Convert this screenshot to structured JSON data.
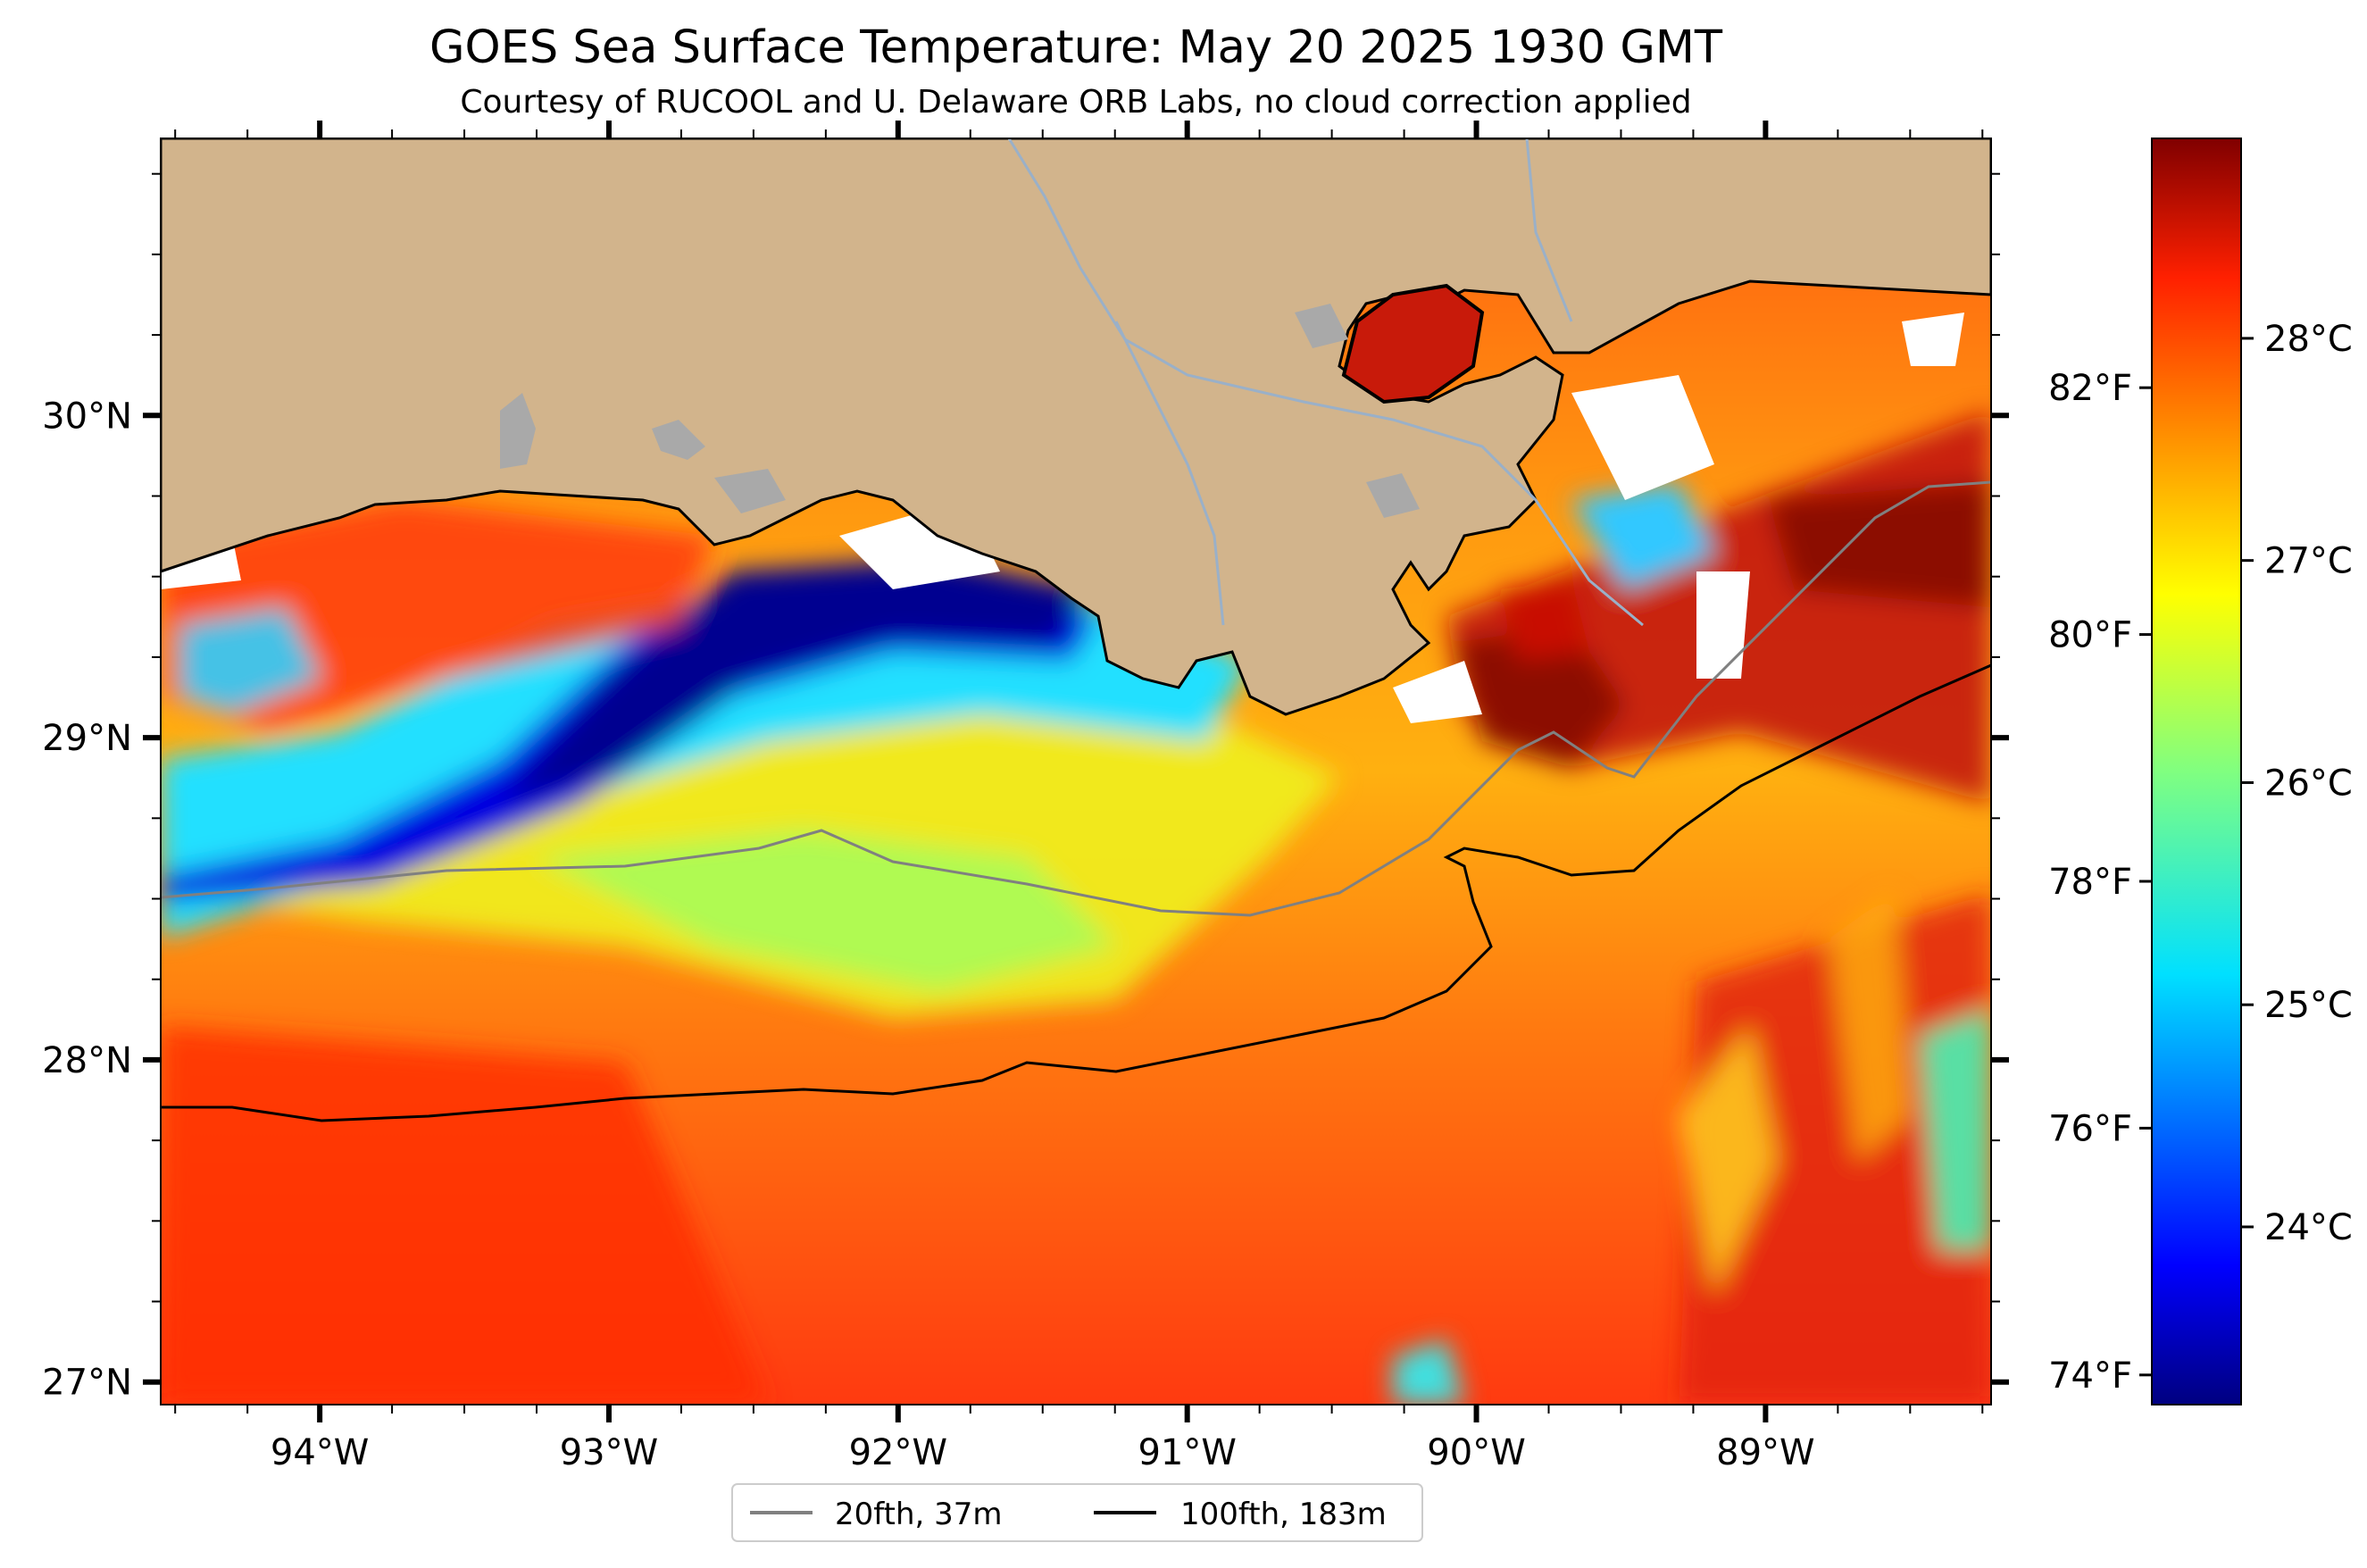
{
  "title": "GOES Sea Surface Temperature: May 20 2025 1930 GMT",
  "subtitle": "Courtesy of RUCOOL and U. Delaware ORB Labs, no cloud correction applied",
  "map": {
    "type": "map",
    "extent": {
      "lon_min": -94.55,
      "lon_max": -88.22,
      "lat_min": 26.93,
      "lat_max": 30.86
    },
    "lon_ticks": [
      -94,
      -93,
      -92,
      -91,
      -90,
      -89
    ],
    "lon_tick_labels": [
      "94°W",
      "93°W",
      "92°W",
      "91°W",
      "90°W",
      "89°W"
    ],
    "lat_ticks": [
      27,
      28,
      29,
      30
    ],
    "lat_tick_labels": [
      "27°N",
      "28°N",
      "29°N",
      "30°N"
    ],
    "land_color": "#d2b48c",
    "water_body_color": "#a9a9a9",
    "river_color": "#9ab0c8",
    "cloud_color": "#ffffff"
  },
  "colorbar": {
    "colormap": "jet",
    "celsius_range": [
      23.2,
      28.9
    ],
    "celsius_ticks": [
      24,
      25,
      26,
      27,
      28
    ],
    "celsius_labels": [
      "24°C",
      "25°C",
      "26°C",
      "27°C",
      "28°C"
    ],
    "fahrenheit_ticks": [
      74,
      76,
      78,
      80,
      82
    ],
    "fahrenheit_labels": [
      "74°F",
      "76°F",
      "78°F",
      "80°F",
      "82°F"
    ]
  },
  "legend": {
    "placement": "bottom-center",
    "items": [
      {
        "label": "20fth, 37m",
        "color": "#808080"
      },
      {
        "label": "100fth, 183m",
        "color": "#000000"
      }
    ]
  }
}
